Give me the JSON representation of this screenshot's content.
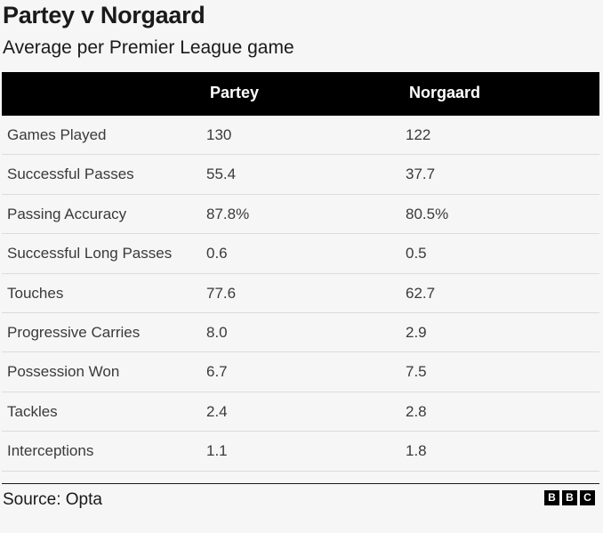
{
  "chart_data": {
    "type": "table",
    "title": "Partey v Norgaard",
    "subtitle": "Average per Premier League game",
    "columns": [
      "",
      "Partey",
      "Norgaard"
    ],
    "rows": [
      {
        "label": "Games Played",
        "values": [
          "130",
          "122"
        ]
      },
      {
        "label": "Successful Passes",
        "values": [
          "55.4",
          "37.7"
        ]
      },
      {
        "label": "Passing Accuracy",
        "values": [
          "87.8%",
          "80.5%"
        ]
      },
      {
        "label": "Successful Long Passes",
        "values": [
          "0.6",
          "0.5"
        ]
      },
      {
        "label": "Touches",
        "values": [
          "77.6",
          "62.7"
        ]
      },
      {
        "label": "Progressive Carries",
        "values": [
          "8.0",
          "2.9"
        ]
      },
      {
        "label": "Possession Won",
        "values": [
          "6.7",
          "7.5"
        ]
      },
      {
        "label": "Tackles",
        "values": [
          "2.4",
          "2.8"
        ]
      },
      {
        "label": "Interceptions",
        "values": [
          "1.1",
          "1.8"
        ]
      }
    ],
    "source": "Source: Opta"
  },
  "logo": {
    "letters": [
      "B",
      "B",
      "C"
    ]
  },
  "colors": {
    "header_bg": "#000000",
    "header_text": "#ffffff",
    "background": "#f6f6f6",
    "row_divider": "#dcdcdc"
  }
}
